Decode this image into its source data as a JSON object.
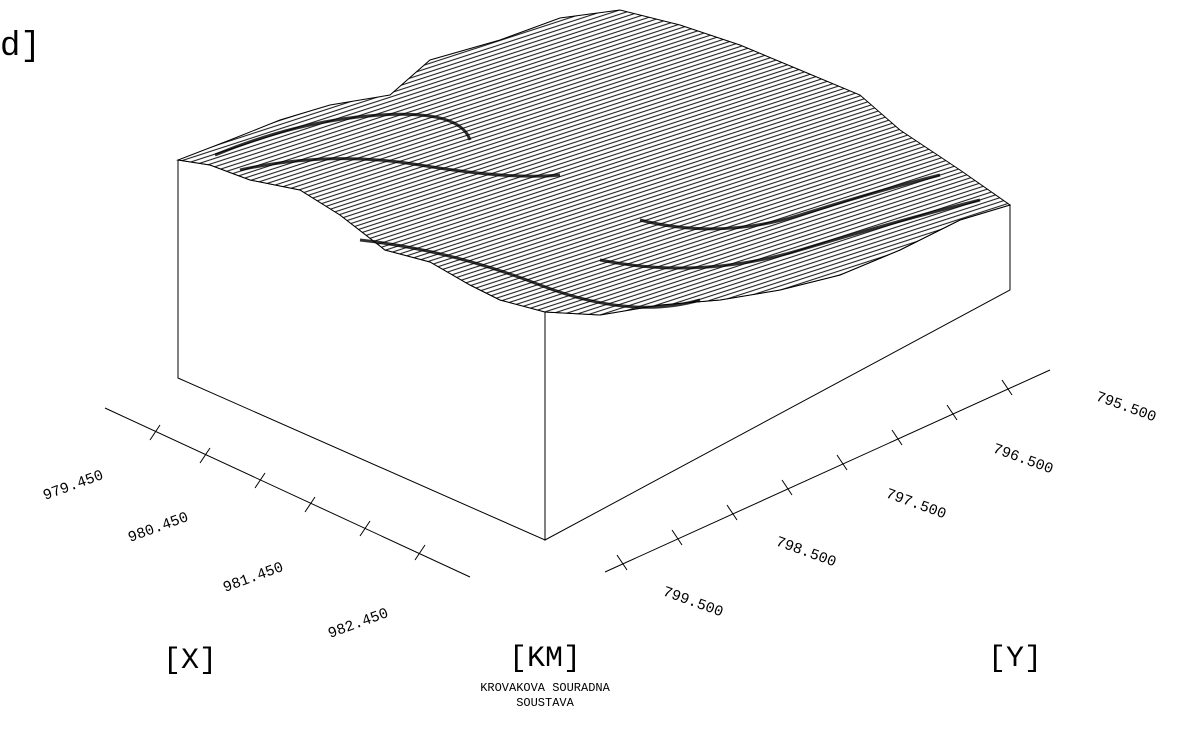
{
  "corner_label": "d]",
  "x_axis": {
    "ticks": [
      "979.450",
      "980.450",
      "981.450",
      "982.450"
    ],
    "label": "[X]"
  },
  "y_axis": {
    "ticks": [
      "795.500",
      "796.500",
      "797.500",
      "798.500",
      "799.500"
    ],
    "label": "[Y]"
  },
  "units": {
    "label": "[KM]",
    "caption": [
      "KROVAKOVA SOURADNA",
      "SOUSTAVA"
    ]
  }
}
